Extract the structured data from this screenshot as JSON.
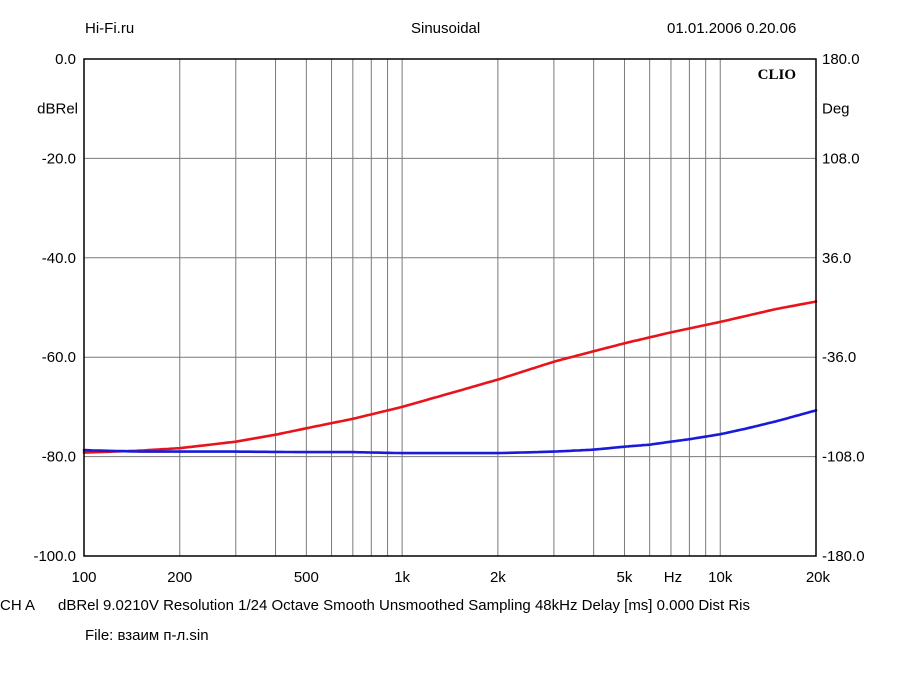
{
  "header": {
    "site": "Hi-Fi.ru",
    "mode": "Sinusoidal",
    "datetime": "01.01.2006 0.20.06"
  },
  "footer": {
    "channel": "CH A",
    "settings": "dBRel 9.0210V  Resolution 1/24 Octave   Smooth Unsmoothed    Sampling 48kHz    Delay [ms] 0.000    Dist Ris",
    "file": "File: взаим п-л.sin"
  },
  "chart_data": {
    "type": "line",
    "brand": "CLIO",
    "xscale": "log",
    "xlim": [
      100,
      20000
    ],
    "xticks": [
      {
        "value": 100,
        "label": "100"
      },
      {
        "value": 200,
        "label": "200"
      },
      {
        "value": 500,
        "label": "500"
      },
      {
        "value": 1000,
        "label": "1k"
      },
      {
        "value": 2000,
        "label": "2k"
      },
      {
        "value": 5000,
        "label": "5k"
      },
      {
        "value": 10000,
        "label": "10k"
      },
      {
        "value": 20000,
        "label": "20k"
      }
    ],
    "xunit": "Hz",
    "xunit_at": 7100,
    "ylabel_left": "dBRel",
    "ylim_left": [
      -100,
      0
    ],
    "yticks_left": [
      "0.0",
      "-20.0",
      "-40.0",
      "-60.0",
      "-80.0",
      "-100.0"
    ],
    "ylabel_right": "Deg",
    "ylim_right": [
      -180,
      180
    ],
    "yticks_right": [
      "180.0",
      "108.0",
      "36.0",
      "-36.0",
      "-108.0",
      "-180.0"
    ],
    "grid": true,
    "series": [
      {
        "name": "red",
        "color": "#e8141c",
        "x": [
          100,
          150,
          200,
          300,
          400,
          500,
          700,
          1000,
          1500,
          2000,
          3000,
          4000,
          5000,
          7000,
          10000,
          15000,
          20000
        ],
        "y": [
          -79.2,
          -78.8,
          -78.3,
          -77.0,
          -75.6,
          -74.3,
          -72.4,
          -70.0,
          -66.8,
          -64.5,
          -60.9,
          -58.8,
          -57.2,
          -55.0,
          -52.9,
          -50.3,
          -48.8
        ]
      },
      {
        "name": "blue",
        "color": "#1a1ad8",
        "x": [
          100,
          150,
          200,
          300,
          500,
          700,
          1000,
          2000,
          3000,
          4000,
          5000,
          6000,
          7000,
          8000,
          10000,
          12000,
          15000,
          20000
        ],
        "y": [
          -78.7,
          -79.0,
          -79.0,
          -79.0,
          -79.1,
          -79.1,
          -79.3,
          -79.3,
          -79.0,
          -78.6,
          -78.0,
          -77.6,
          -77.0,
          -76.5,
          -75.5,
          -74.4,
          -72.9,
          -70.7
        ]
      }
    ]
  }
}
